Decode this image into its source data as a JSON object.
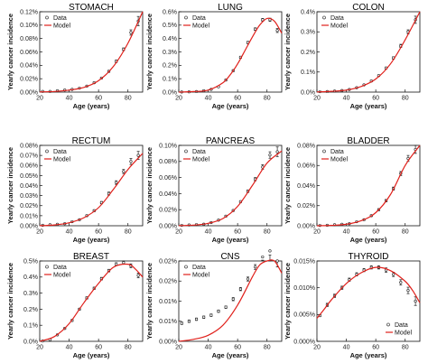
{
  "shared": {
    "xlabel": "Age (years)",
    "ylabel": "Yearly cancer incidence",
    "legend_data": "Data",
    "legend_model": "Model"
  },
  "colors": {
    "model": "#e0201b",
    "data": "#222222",
    "axis": "#111111"
  },
  "chart_data": [
    {
      "type": "line",
      "title": "STOMACH",
      "xlabel": "Age (years)",
      "ylabel": "Yearly cancer incidence",
      "xlim": [
        20,
        90
      ],
      "xticks": [
        20,
        40,
        60,
        80
      ],
      "ylim": [
        0,
        0.12
      ],
      "yticks": [
        0,
        0.02,
        0.04,
        0.06,
        0.08,
        0.1,
        0.12
      ],
      "ytick_labels": [
        "0.00%",
        "0.02%",
        "0.04%",
        "0.06%",
        "0.08%",
        "0.10%",
        "0.12%"
      ],
      "legend": "top-left",
      "series": [
        {
          "name": "Data",
          "kind": "points",
          "x": [
            22,
            27,
            32,
            37,
            42,
            47,
            52,
            57,
            62,
            67,
            72,
            77,
            82,
            87
          ],
          "y": [
            0.001,
            0.001,
            0.002,
            0.003,
            0.004,
            0.006,
            0.009,
            0.014,
            0.021,
            0.031,
            0.046,
            0.064,
            0.089,
            0.106
          ],
          "err": [
            0.0005,
            0.0005,
            0.0005,
            0.0005,
            0.0005,
            0.0005,
            0.0008,
            0.001,
            0.001,
            0.0015,
            0.0018,
            0.002,
            0.004,
            0.007
          ]
        },
        {
          "name": "Model",
          "kind": "line",
          "x": [
            20,
            30,
            40,
            50,
            60,
            70,
            80,
            90
          ],
          "y": [
            0.0003,
            0.001,
            0.003,
            0.007,
            0.017,
            0.038,
            0.073,
            0.12
          ]
        }
      ]
    },
    {
      "type": "line",
      "title": "LUNG",
      "xlabel": "Age (years)",
      "ylabel": "Yearly cancer incidence",
      "xlim": [
        20,
        90
      ],
      "xticks": [
        20,
        40,
        60,
        80
      ],
      "ylim": [
        0,
        0.6
      ],
      "yticks": [
        0,
        0.1,
        0.2,
        0.3,
        0.4,
        0.5,
        0.6
      ],
      "ytick_labels": [
        "0.0%",
        "0.1%",
        "0.2%",
        "0.3%",
        "0.4%",
        "0.5%",
        "0.6%"
      ],
      "legend": "top-left",
      "series": [
        {
          "name": "Data",
          "kind": "points",
          "x": [
            22,
            27,
            32,
            37,
            42,
            47,
            52,
            57,
            62,
            67,
            72,
            77,
            82,
            87
          ],
          "y": [
            0.001,
            0.002,
            0.004,
            0.01,
            0.02,
            0.04,
            0.09,
            0.16,
            0.26,
            0.37,
            0.47,
            0.54,
            0.54,
            0.46
          ],
          "err": [
            0.002,
            0.002,
            0.002,
            0.003,
            0.004,
            0.005,
            0.006,
            0.007,
            0.008,
            0.009,
            0.01,
            0.01,
            0.012,
            0.015
          ]
        },
        {
          "name": "Model",
          "kind": "line",
          "x": [
            20,
            30,
            40,
            50,
            55,
            60,
            65,
            70,
            75,
            80,
            85,
            90
          ],
          "y": [
            0.0,
            0.004,
            0.015,
            0.07,
            0.13,
            0.21,
            0.31,
            0.41,
            0.5,
            0.55,
            0.53,
            0.44
          ]
        }
      ]
    },
    {
      "type": "line",
      "title": "COLON",
      "xlabel": "Age (years)",
      "ylabel": "Yearly cancer incidence",
      "xlim": [
        20,
        90
      ],
      "xticks": [
        20,
        40,
        60,
        80
      ],
      "ylim": [
        0,
        0.4
      ],
      "yticks": [
        0,
        0.1,
        0.2,
        0.3,
        0.4
      ],
      "ytick_labels": [
        "0.0%",
        "0.1%",
        "0.2%",
        "0.3%",
        "0.4%"
      ],
      "legend": "top-left",
      "series": [
        {
          "name": "Data",
          "kind": "points",
          "x": [
            22,
            27,
            32,
            37,
            42,
            47,
            52,
            57,
            62,
            67,
            72,
            77,
            82,
            87
          ],
          "y": [
            0.002,
            0.003,
            0.005,
            0.008,
            0.013,
            0.022,
            0.036,
            0.055,
            0.082,
            0.12,
            0.17,
            0.23,
            0.3,
            0.36
          ],
          "err": [
            0.001,
            0.001,
            0.001,
            0.002,
            0.002,
            0.003,
            0.003,
            0.004,
            0.004,
            0.005,
            0.006,
            0.008,
            0.01,
            0.018
          ]
        },
        {
          "name": "Model",
          "kind": "line",
          "x": [
            20,
            30,
            40,
            50,
            60,
            70,
            80,
            90
          ],
          "y": [
            0.001,
            0.004,
            0.01,
            0.028,
            0.065,
            0.14,
            0.26,
            0.4
          ]
        }
      ]
    },
    {
      "type": "line",
      "title": "RECTUM",
      "xlabel": "Age (years)",
      "ylabel": "Yearly cancer incidence",
      "xlim": [
        20,
        90
      ],
      "xticks": [
        20,
        40,
        60,
        80
      ],
      "ylim": [
        0,
        0.08
      ],
      "yticks": [
        0,
        0.01,
        0.02,
        0.03,
        0.04,
        0.05,
        0.06,
        0.07,
        0.08
      ],
      "ytick_labels": [
        "0.00%",
        "0.01%",
        "0.02%",
        "0.03%",
        "0.04%",
        "0.05%",
        "0.06%",
        "0.07%",
        "0.08%"
      ],
      "legend": "top-left",
      "series": [
        {
          "name": "Data",
          "kind": "points",
          "x": [
            22,
            27,
            32,
            37,
            42,
            47,
            52,
            57,
            62,
            67,
            72,
            77,
            82,
            87
          ],
          "y": [
            0.0005,
            0.001,
            0.0015,
            0.002,
            0.004,
            0.006,
            0.01,
            0.015,
            0.023,
            0.032,
            0.043,
            0.054,
            0.064,
            0.07
          ],
          "err": [
            0.0003,
            0.0003,
            0.0003,
            0.0004,
            0.0005,
            0.0006,
            0.0008,
            0.001,
            0.0012,
            0.0015,
            0.0018,
            0.002,
            0.003,
            0.004
          ]
        },
        {
          "name": "Model",
          "kind": "line",
          "x": [
            20,
            30,
            40,
            50,
            60,
            70,
            80,
            90
          ],
          "y": [
            0.0001,
            0.0008,
            0.003,
            0.008,
            0.018,
            0.036,
            0.056,
            0.072
          ]
        }
      ]
    },
    {
      "type": "line",
      "title": "PANCREAS",
      "xlabel": "Age (years)",
      "ylabel": "Yearly cancer incidence",
      "xlim": [
        20,
        90
      ],
      "xticks": [
        20,
        40,
        60,
        80
      ],
      "ylim": [
        0,
        0.1
      ],
      "yticks": [
        0,
        0.02,
        0.04,
        0.06,
        0.08,
        0.1
      ],
      "ytick_labels": [
        "0.00%",
        "0.02%",
        "0.04%",
        "0.06%",
        "0.08%",
        "0.10%"
      ],
      "legend": "top-left",
      "series": [
        {
          "name": "Data",
          "kind": "points",
          "x": [
            22,
            27,
            32,
            37,
            42,
            47,
            52,
            57,
            62,
            67,
            72,
            77,
            82,
            87
          ],
          "y": [
            0.0005,
            0.001,
            0.0015,
            0.002,
            0.004,
            0.007,
            0.012,
            0.019,
            0.03,
            0.043,
            0.058,
            0.073,
            0.088,
            0.092
          ],
          "err": [
            0.0004,
            0.0004,
            0.0004,
            0.0005,
            0.0006,
            0.0007,
            0.0009,
            0.001,
            0.0012,
            0.0015,
            0.002,
            0.003,
            0.004,
            0.006
          ]
        },
        {
          "name": "Model",
          "kind": "line",
          "x": [
            20,
            30,
            40,
            50,
            60,
            70,
            80,
            90
          ],
          "y": [
            0.0001,
            0.0008,
            0.003,
            0.009,
            0.024,
            0.05,
            0.078,
            0.093
          ]
        }
      ]
    },
    {
      "type": "line",
      "title": "BLADDER",
      "xlabel": "Age (years)",
      "ylabel": "Yearly cancer incidence",
      "xlim": [
        20,
        90
      ],
      "xticks": [
        20,
        40,
        60,
        80
      ],
      "ylim": [
        0,
        0.08
      ],
      "yticks": [
        0,
        0.02,
        0.04,
        0.06,
        0.08
      ],
      "ytick_labels": [
        "0.00%",
        "0.02%",
        "0.04%",
        "0.06%",
        "0.08%"
      ],
      "legend": "top-left",
      "series": [
        {
          "name": "Data",
          "kind": "points",
          "x": [
            22,
            27,
            32,
            37,
            42,
            47,
            52,
            57,
            62,
            67,
            72,
            77,
            82,
            87
          ],
          "y": [
            0.0003,
            0.0005,
            0.001,
            0.0015,
            0.002,
            0.004,
            0.006,
            0.01,
            0.016,
            0.025,
            0.037,
            0.052,
            0.067,
            0.076
          ],
          "err": [
            0.0003,
            0.0003,
            0.0003,
            0.0004,
            0.0004,
            0.0005,
            0.0006,
            0.0008,
            0.001,
            0.0012,
            0.0015,
            0.002,
            0.003,
            0.004
          ]
        },
        {
          "name": "Model",
          "kind": "line",
          "x": [
            20,
            30,
            40,
            50,
            60,
            70,
            80,
            90
          ],
          "y": [
            0.0,
            0.0004,
            0.0015,
            0.005,
            0.013,
            0.031,
            0.06,
            0.085
          ]
        }
      ]
    },
    {
      "type": "line",
      "title": "BREAST",
      "xlabel": "Age (years)",
      "ylabel": "Yearly cancer incidence",
      "xlim": [
        20,
        90
      ],
      "xticks": [
        20,
        40,
        60,
        80
      ],
      "ylim": [
        0,
        0.5
      ],
      "yticks": [
        0,
        0.1,
        0.2,
        0.3,
        0.4,
        0.5
      ],
      "ytick_labels": [
        "0.0%",
        "0.1%",
        "0.2%",
        "0.3%",
        "0.4%",
        "0.5%"
      ],
      "legend": "top-left",
      "series": [
        {
          "name": "Data",
          "kind": "points",
          "x": [
            22,
            27,
            32,
            37,
            42,
            47,
            52,
            57,
            62,
            67,
            72,
            77,
            82,
            87
          ],
          "y": [
            0.002,
            0.01,
            0.04,
            0.08,
            0.13,
            0.2,
            0.27,
            0.33,
            0.39,
            0.44,
            0.48,
            0.49,
            0.47,
            0.41
          ],
          "err": [
            0.002,
            0.003,
            0.004,
            0.005,
            0.006,
            0.006,
            0.007,
            0.007,
            0.008,
            0.008,
            0.009,
            0.01,
            0.012,
            0.015
          ]
        },
        {
          "name": "Model",
          "kind": "line",
          "x": [
            20,
            30,
            40,
            50,
            60,
            70,
            80,
            85,
            90
          ],
          "y": [
            0.0,
            0.03,
            0.11,
            0.24,
            0.36,
            0.46,
            0.48,
            0.45,
            0.4
          ]
        }
      ]
    },
    {
      "type": "line",
      "title": "CNS",
      "xlabel": "Age (years)",
      "ylabel": "Yearly cancer incidence",
      "xlim": [
        20,
        90
      ],
      "xticks": [
        20,
        40,
        60,
        80
      ],
      "ylim": [
        0,
        0.02
      ],
      "yticks": [
        0,
        0.005,
        0.01,
        0.015,
        0.02
      ],
      "ytick_labels": [
        "0.00%",
        "0.01%",
        "0.01%",
        "0.02%",
        "0.02%"
      ],
      "legend": "top-left",
      "series": [
        {
          "name": "Data",
          "kind": "points",
          "x": [
            22,
            27,
            32,
            37,
            42,
            47,
            52,
            57,
            62,
            67,
            72,
            77,
            82,
            87
          ],
          "y": [
            0.0045,
            0.005,
            0.0055,
            0.006,
            0.0065,
            0.0075,
            0.0085,
            0.0105,
            0.013,
            0.0155,
            0.0185,
            0.021,
            0.0225,
            0.02
          ],
          "err": [
            0.0003,
            0.0003,
            0.0003,
            0.0003,
            0.0003,
            0.0003,
            0.0003,
            0.0004,
            0.0004,
            0.0005,
            0.0006,
            0.0008,
            0.001,
            0.0015
          ]
        },
        {
          "name": "Model",
          "kind": "line",
          "x": [
            20,
            30,
            40,
            50,
            60,
            70,
            75,
            80,
            85,
            90
          ],
          "y": [
            0.0,
            0.0005,
            0.0015,
            0.004,
            0.009,
            0.016,
            0.019,
            0.021,
            0.0205,
            0.017
          ]
        }
      ]
    },
    {
      "type": "line",
      "title": "THYROID",
      "xlabel": "Age (years)",
      "ylabel": "Yearly cancer incidence",
      "xlim": [
        20,
        90
      ],
      "xticks": [
        20,
        40,
        60,
        80
      ],
      "ylim": [
        0,
        0.015
      ],
      "yticks": [
        0,
        0.005,
        0.01,
        0.015
      ],
      "ytick_labels": [
        "0.000%",
        "0.005%",
        "0.010%",
        "0.015%"
      ],
      "legend": "bottom-right",
      "series": [
        {
          "name": "Data",
          "kind": "points",
          "x": [
            22,
            27,
            32,
            37,
            42,
            47,
            52,
            57,
            62,
            67,
            72,
            77,
            82,
            87
          ],
          "y": [
            0.0048,
            0.0068,
            0.0085,
            0.01,
            0.0115,
            0.0125,
            0.0133,
            0.0138,
            0.0138,
            0.0133,
            0.0125,
            0.011,
            0.0095,
            0.0075
          ],
          "err": [
            0.0002,
            0.0003,
            0.0003,
            0.0003,
            0.0003,
            0.0003,
            0.0003,
            0.0003,
            0.0003,
            0.0004,
            0.0004,
            0.0005,
            0.0006,
            0.0008
          ]
        },
        {
          "name": "Model",
          "kind": "line",
          "x": [
            20,
            25,
            30,
            40,
            50,
            60,
            70,
            80,
            85,
            90
          ],
          "y": [
            0.0043,
            0.006,
            0.0078,
            0.0108,
            0.0128,
            0.0138,
            0.0132,
            0.0112,
            0.0095,
            0.0072
          ]
        }
      ]
    }
  ]
}
